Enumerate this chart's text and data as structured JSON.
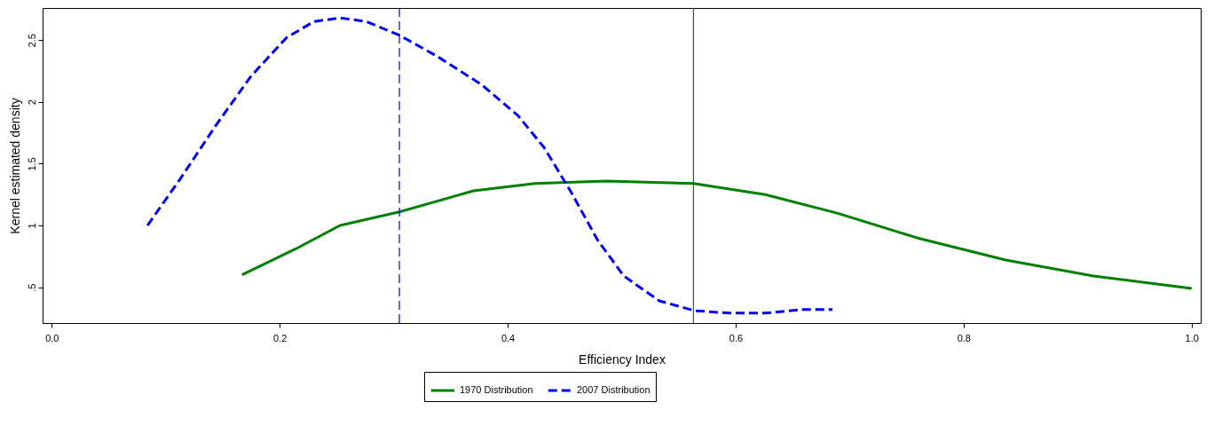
{
  "chart_data": {
    "type": "line",
    "xlabel": "Efficiency Index",
    "ylabel": "Kernel estimated density",
    "xlim": [
      -0.008,
      1.008
    ],
    "ylim": [
      0.21,
      2.76
    ],
    "xticks": [
      {
        "value": 0,
        "label": "0.0"
      },
      0.2,
      0.4,
      0.6,
      0.8,
      {
        "value": 1,
        "label": "1.0"
      }
    ],
    "yticks": [
      {
        "value": 0.5,
        "label": ".5"
      },
      1,
      1.5,
      2,
      2.5
    ],
    "grid": false,
    "legend": "bottom",
    "marker": "none",
    "series": [
      {
        "name": "1970 Distribution",
        "color": "#008000",
        "line_style": "solid",
        "x": [
          0.167,
          0.214,
          0.253,
          0.305,
          0.37,
          0.424,
          0.486,
          0.563,
          0.626,
          0.689,
          0.759,
          0.837,
          0.914,
          1.0
        ],
        "values": [
          0.6,
          0.81,
          1.0,
          1.11,
          1.28,
          1.34,
          1.36,
          1.34,
          1.25,
          1.1,
          0.9,
          0.72,
          0.59,
          0.49
        ]
      },
      {
        "name": "2007 Distribution",
        "color": "#0000ff",
        "line_style": "dashed",
        "x": [
          0.084,
          0.113,
          0.144,
          0.175,
          0.206,
          0.23,
          0.253,
          0.276,
          0.305,
          0.338,
          0.377,
          0.409,
          0.432,
          0.455,
          0.479,
          0.502,
          0.533,
          0.564,
          0.595,
          0.626,
          0.658,
          0.685
        ],
        "values": [
          1.0,
          1.38,
          1.81,
          2.21,
          2.52,
          2.65,
          2.68,
          2.65,
          2.54,
          2.37,
          2.14,
          1.89,
          1.63,
          1.28,
          0.88,
          0.59,
          0.39,
          0.31,
          0.29,
          0.29,
          0.32,
          0.32
        ]
      }
    ],
    "ref_lines": [
      {
        "axis": "x",
        "value": 0.305,
        "color": "#0000ff",
        "line_style": "dashed"
      },
      {
        "axis": "x",
        "value": 0.563,
        "color": "#008000",
        "line_style": "solid"
      }
    ]
  }
}
